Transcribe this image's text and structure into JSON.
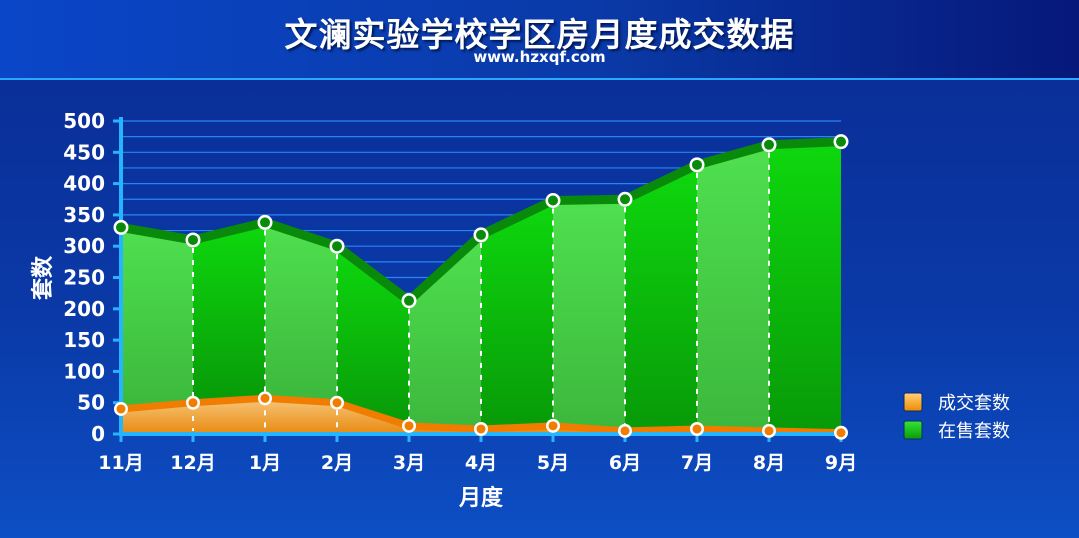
{
  "header": {
    "title": "文澜实验学校学区房月度成交数据",
    "subtitle": "www.hzxqf.com"
  },
  "colors": {
    "sold_fill": "#f2a23a",
    "sold_line": "#f07d00",
    "onsale_fill_light": "#45dc45",
    "onsale_fill_dark": "#0cb80c",
    "onsale_line": "#0a8a0a",
    "grid": "#2e8cff",
    "axis": "#27b4ff"
  },
  "chart_data": {
    "type": "area",
    "xlabel": "月度",
    "ylabel": "套数",
    "ylim": [
      0,
      500
    ],
    "yticks": [
      0,
      50,
      100,
      150,
      200,
      250,
      300,
      350,
      400,
      450,
      500
    ],
    "categories": [
      "11月",
      "12月",
      "1月",
      "2月",
      "3月",
      "4月",
      "5月",
      "6月",
      "7月",
      "8月",
      "9月"
    ],
    "grid": true,
    "legend_position": "right",
    "series": [
      {
        "name": "成交套数",
        "values": [
          40,
          50,
          57,
          50,
          13,
          8,
          13,
          5,
          8,
          5,
          2
        ]
      },
      {
        "name": "在售套数",
        "values": [
          330,
          310,
          338,
          300,
          213,
          318,
          373,
          375,
          430,
          462,
          467
        ]
      }
    ]
  }
}
